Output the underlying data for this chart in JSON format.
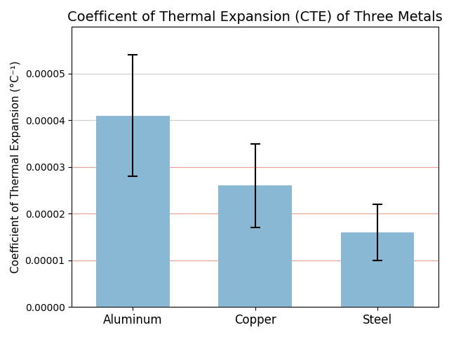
{
  "title": "Coefficent of Thermal Expansion (CTE) of Three Metals",
  "xlabel": "",
  "ylabel": "Coefficient of Thermal Expansion (°C⁻¹)",
  "categories": [
    "Aluminum",
    "Copper",
    "Steel"
  ],
  "values": [
    4.1e-05,
    2.6e-05,
    1.6e-05
  ],
  "errors": [
    1.3e-05,
    9e-06,
    6e-06
  ],
  "bar_color": "#89b8d4",
  "error_color": "black",
  "ylim": [
    0,
    6e-05
  ],
  "yticks": [
    0.0,
    1e-05,
    2e-05,
    3e-05,
    4e-05,
    5e-05
  ],
  "grid_color": "#cccccc",
  "orange_lines": [
    1e-05,
    2e-05,
    3e-05
  ],
  "orange_color": "#e8a090",
  "figsize": [
    6.4,
    4.8
  ],
  "dpi": 100,
  "title_fontsize": 14,
  "bar_width": 0.6
}
